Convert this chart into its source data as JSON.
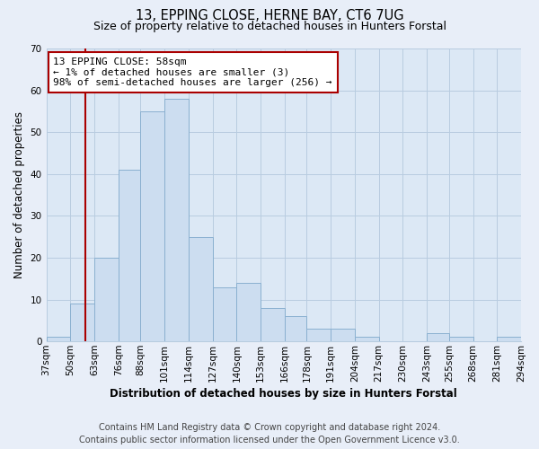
{
  "title": "13, EPPING CLOSE, HERNE BAY, CT6 7UG",
  "subtitle": "Size of property relative to detached houses in Hunters Forstal",
  "xlabel": "Distribution of detached houses by size in Hunters Forstal",
  "ylabel": "Number of detached properties",
  "bin_edges": [
    37,
    50,
    63,
    76,
    88,
    101,
    114,
    127,
    140,
    153,
    166,
    178,
    191,
    204,
    217,
    230,
    243,
    255,
    268,
    281,
    294
  ],
  "bin_labels": [
    "37sqm",
    "50sqm",
    "63sqm",
    "76sqm",
    "88sqm",
    "101sqm",
    "114sqm",
    "127sqm",
    "140sqm",
    "153sqm",
    "166sqm",
    "178sqm",
    "191sqm",
    "204sqm",
    "217sqm",
    "230sqm",
    "243sqm",
    "255sqm",
    "268sqm",
    "281sqm",
    "294sqm"
  ],
  "counts": [
    1,
    9,
    20,
    41,
    55,
    58,
    25,
    13,
    14,
    8,
    6,
    3,
    3,
    1,
    0,
    0,
    2,
    1,
    0,
    1
  ],
  "bar_color": "#ccddf0",
  "bar_edge_color": "#8ab0d0",
  "vline_x": 58,
  "vline_color": "#aa0000",
  "annotation_line1": "13 EPPING CLOSE: 58sqm",
  "annotation_line2": "← 1% of detached houses are smaller (3)",
  "annotation_line3": "98% of semi-detached houses are larger (256) →",
  "annotation_box_color": "#ffffff",
  "annotation_box_edge": "#aa0000",
  "ylim": [
    0,
    70
  ],
  "yticks": [
    0,
    10,
    20,
    30,
    40,
    50,
    60,
    70
  ],
  "footer_line1": "Contains HM Land Registry data © Crown copyright and database right 2024.",
  "footer_line2": "Contains public sector information licensed under the Open Government Licence v3.0.",
  "background_color": "#e8eef8",
  "plot_bg_color": "#dce8f5",
  "title_fontsize": 10.5,
  "subtitle_fontsize": 9,
  "axis_label_fontsize": 8.5,
  "tick_fontsize": 7.5,
  "footer_fontsize": 7,
  "grid_color": "#b8cce0"
}
